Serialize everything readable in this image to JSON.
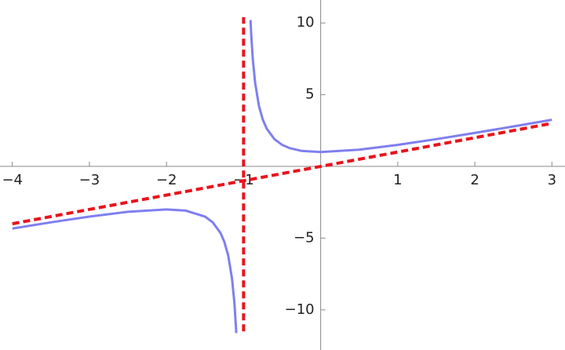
{
  "chart_data": {
    "type": "line",
    "xlim": [
      -4.16,
      3.17
    ],
    "ylim": [
      -12.8,
      11.6
    ],
    "xticks": [
      {
        "value": -4,
        "label": "−4"
      },
      {
        "value": -3,
        "label": "−3"
      },
      {
        "value": -2,
        "label": "−2"
      },
      {
        "value": -1,
        "label": "−1"
      },
      1,
      2,
      3
    ],
    "yticks": [
      {
        "value": -10,
        "label": "−10"
      },
      {
        "value": -5,
        "label": "−5"
      },
      5,
      10
    ],
    "series": [
      {
        "color": "#7f7fef",
        "dashed": false,
        "x": [
          -4,
          -3.5,
          -3,
          -2.5,
          -2,
          -1.75,
          -1.5,
          -1.4,
          -1.3,
          -1.25,
          -1.2,
          -1.15,
          -1.12,
          -1.1,
          -1.095,
          -1,
          -0.91,
          -0.9,
          -0.88,
          -0.85,
          -0.8,
          -0.75,
          -0.7,
          -0.6,
          -0.5,
          -0.4,
          -0.25,
          0,
          0.5,
          1,
          1.5,
          2,
          2.5,
          3
        ],
        "values": [
          -4.333,
          -3.9,
          -3.5,
          -3.167,
          -3,
          -3.083,
          -3.5,
          -3.9,
          -4.633,
          -5.25,
          -6.2,
          -7.817,
          -9.453,
          -11.1,
          -11.621,
          null,
          10.201,
          9.1,
          7.453,
          5.817,
          4.2,
          3.25,
          2.633,
          1.9,
          1.5,
          1.267,
          1.083,
          1,
          1.167,
          1.5,
          1.9,
          2.333,
          2.786,
          3.25
        ]
      },
      {
        "color": "#e8141c",
        "dashed": true,
        "x": [
          -4,
          3
        ],
        "values": [
          -4,
          3
        ]
      },
      {
        "color": "#e8141c",
        "dashed": true,
        "x": [
          -1,
          -1
        ],
        "values": [
          -11.5,
          10.4
        ]
      }
    ]
  }
}
